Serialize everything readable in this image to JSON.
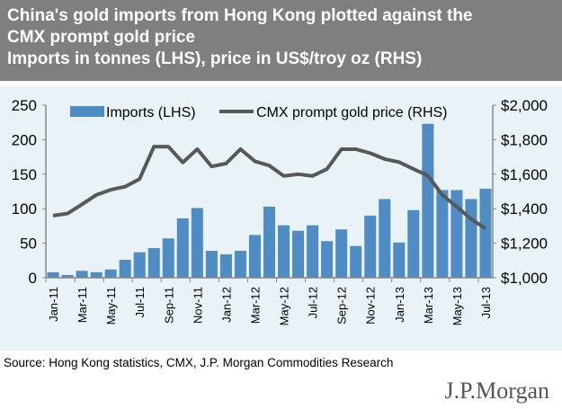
{
  "title": {
    "line1": "China's gold imports from Hong Kong plotted against the",
    "line2": "CMX prompt gold price",
    "line3": "Imports in tonnes (LHS), price in US$/troy oz (RHS)"
  },
  "source": "Source: Hong Kong statistics, CMX, J.P. Morgan Commodities Research",
  "logo": "J.P.Morgan",
  "chart_data": {
    "type": "bar+line",
    "categories": [
      "Jan-11",
      "Feb-11",
      "Mar-11",
      "Apr-11",
      "May-11",
      "Jun-11",
      "Jul-11",
      "Aug-11",
      "Sep-11",
      "Oct-11",
      "Nov-11",
      "Dec-11",
      "Jan-12",
      "Feb-12",
      "Mar-12",
      "Apr-12",
      "May-12",
      "Jun-12",
      "Jul-12",
      "Aug-12",
      "Sep-12",
      "Oct-12",
      "Nov-12",
      "Dec-12",
      "Jan-13",
      "Feb-13",
      "Mar-13",
      "Apr-13",
      "May-13",
      "Jun-13",
      "Jul-13"
    ],
    "tick_labels": [
      "Jan-11",
      "Mar-11",
      "May-11",
      "Jul-11",
      "Sep-11",
      "Nov-11",
      "Jan-12",
      "Mar-12",
      "May-12",
      "Jul-12",
      "Sep-12",
      "Nov-12",
      "Jan-13",
      "Mar-13",
      "May-13",
      "Jul-13"
    ],
    "series": [
      {
        "name": "Imports (LHS)",
        "type": "bar",
        "axis": "left",
        "color": "#4f8cc4",
        "values": [
          8,
          4,
          10,
          8,
          12,
          26,
          37,
          43,
          57,
          86,
          101,
          39,
          34,
          39,
          62,
          103,
          76,
          68,
          76,
          53,
          70,
          46,
          90,
          114,
          51,
          98,
          223,
          127,
          127,
          114,
          129
        ]
      },
      {
        "name": "CMX prompt gold price (RHS)",
        "type": "line",
        "axis": "right",
        "color": "#58585a",
        "values": [
          1360,
          1372,
          1425,
          1480,
          1510,
          1528,
          1572,
          1760,
          1760,
          1668,
          1745,
          1645,
          1662,
          1745,
          1675,
          1650,
          1590,
          1600,
          1590,
          1630,
          1745,
          1745,
          1722,
          1688,
          1670,
          1630,
          1592,
          1480,
          1412,
          1340,
          1285
        ]
      }
    ],
    "ylim_left": [
      0,
      250
    ],
    "yticks_left": [
      "0",
      "50",
      "100",
      "150",
      "200",
      "250"
    ],
    "ylim_right": [
      1000,
      2000
    ],
    "yticks_right": [
      "$1,000",
      "$1,200",
      "$1,400",
      "$1,600",
      "$1,800",
      "$2,000"
    ],
    "grid": false,
    "legend": "top"
  }
}
